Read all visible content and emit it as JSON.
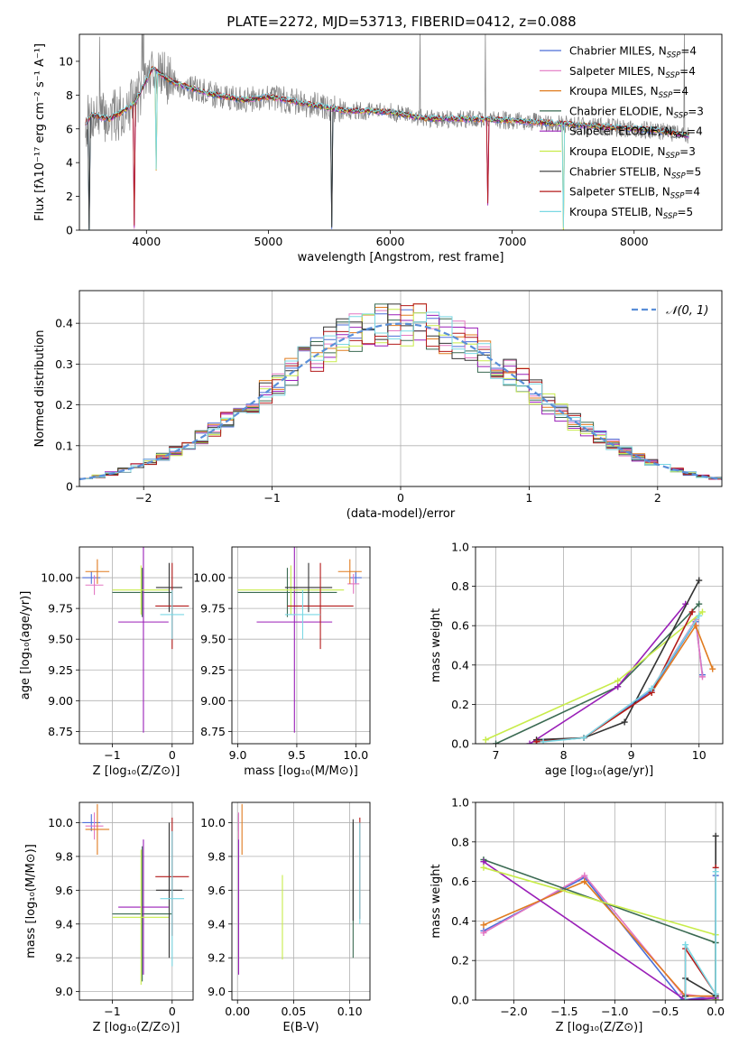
{
  "figure": {
    "title": "PLATE=2272, MJD=53713, FIBERID=0412, z=0.088"
  },
  "chart_data": [
    {
      "id": "spectrum",
      "type": "line",
      "xlabel": "wavelength [Angstrom, rest frame]",
      "ylabel": "Flux [fλ10⁻¹⁷ erg cm⁻² s⁻¹ A⁻¹]",
      "xlim": [
        3450,
        8720
      ],
      "ylim": [
        0,
        11.6
      ],
      "xticks": [
        4000,
        5000,
        6000,
        7000,
        8000
      ],
      "yticks": [
        0,
        2,
        4,
        6,
        8,
        10
      ],
      "grid": false,
      "legend": "top-right",
      "data_color": "#808080",
      "data_knots": [
        [
          3500,
          6.3
        ],
        [
          3550,
          6.8
        ],
        [
          3700,
          6.6
        ],
        [
          3800,
          7.0
        ],
        [
          3900,
          7.5
        ],
        [
          4000,
          8.9
        ],
        [
          4050,
          9.6
        ],
        [
          4200,
          8.8
        ],
        [
          4500,
          8.1
        ],
        [
          4800,
          7.7
        ],
        [
          5000,
          7.9
        ],
        [
          5300,
          7.5
        ],
        [
          5600,
          7.1
        ],
        [
          6000,
          7.0
        ],
        [
          6300,
          6.6
        ],
        [
          6600,
          6.6
        ],
        [
          7000,
          6.5
        ],
        [
          7400,
          6.3
        ],
        [
          7800,
          6.1
        ],
        [
          8200,
          5.9
        ],
        [
          8450,
          5.6
        ]
      ],
      "absorption_lines": [
        {
          "x": 3530,
          "depth": 6.6
        },
        {
          "x": 3900,
          "depth": 7.3
        },
        {
          "x": 4080,
          "depth": 5.8
        },
        {
          "x": 5520,
          "depth": 7.0
        },
        {
          "x": 6800,
          "depth": 5.0
        },
        {
          "x": 7420,
          "depth": 6.3
        }
      ],
      "series": [
        {
          "name": "Chabrier MILES, N$_{SSP}$=4",
          "label": "Chabrier MILES, N",
          "sub": "SSP",
          "n": "=4",
          "color": "#4c6ed8"
        },
        {
          "name": "Salpeter MILES, N$_{SSP}$=4",
          "label": "Salpeter MILES, N",
          "sub": "SSP",
          "n": "=4",
          "color": "#e377c2"
        },
        {
          "name": "Kroupa MILES, N$_{SSP}$=4",
          "label": "Kroupa MILES, N",
          "sub": "SSP",
          "n": "=4",
          "color": "#e07b1f"
        },
        {
          "name": "Chabrier ELODIE, N$_{SSP}$=3",
          "label": "Chabrier ELODIE, N",
          "sub": "SSP",
          "n": "=3",
          "color": "#3a6a52"
        },
        {
          "name": "Salpeter ELODIE, N$_{SSP}$=4",
          "label": "Salpeter ELODIE, N",
          "sub": "SSP",
          "n": "=4",
          "color": "#9a1fb8"
        },
        {
          "name": "Kroupa ELODIE, N$_{SSP}$=3",
          "label": "Kroupa ELODIE, N",
          "sub": "SSP",
          "n": "=3",
          "color": "#c8ec4a"
        },
        {
          "name": "Chabrier STELIB, N$_{SSP}$=5",
          "label": "Chabrier STELIB, N",
          "sub": "SSP",
          "n": "=5",
          "color": "#333333"
        },
        {
          "name": "Salpeter STELIB, N$_{SSP}$=4",
          "label": "Salpeter STELIB, N",
          "sub": "SSP",
          "n": "=4",
          "color": "#b31a1a"
        },
        {
          "name": "Kroupa STELIB, N$_{SSP}$=5",
          "label": "Kroupa STELIB, N",
          "sub": "SSP",
          "n": "=5",
          "color": "#7ad8e4"
        }
      ]
    },
    {
      "id": "residuals",
      "type": "histogram",
      "xlabel": "(data-model)/error",
      "ylabel": "Normed distribution",
      "xlim": [
        -2.5,
        2.5
      ],
      "ylim": [
        0,
        0.48
      ],
      "xticks": [
        -2,
        -1,
        0,
        1,
        2
      ],
      "yticks": [
        0.0,
        0.1,
        0.2,
        0.3,
        0.4
      ],
      "grid": true,
      "legend": "top-right",
      "reference": {
        "name": "𝒩(0, 1)",
        "color": "#5a8fd8",
        "style": "dashed"
      },
      "bin_width": 0.1,
      "bin_start": -2.5,
      "bin_count": 50
    },
    {
      "id": "age_vs_Z",
      "type": "errorbar",
      "xlabel": "Z [log₁₀(Z/Z⊙)]",
      "ylabel": "age  [log₁₀(age/yr)]",
      "xlim": [
        -1.55,
        0.35
      ],
      "ylim": [
        8.65,
        10.25
      ],
      "xticks": [
        -1,
        0
      ],
      "yticks": [
        8.75,
        9.0,
        9.25,
        9.5,
        9.75,
        10.0
      ],
      "ytick_labels": [
        "8.75",
        "9.00",
        "9.25",
        "9.50",
        "9.75",
        "10.00"
      ],
      "grid": true,
      "points": [
        {
          "series": 0,
          "x": -1.35,
          "xerr": 0.15,
          "y": 10.0,
          "yerr": 0.05
        },
        {
          "series": 1,
          "x": -1.3,
          "xerr": 0.15,
          "y": 9.94,
          "yerr": 0.08
        },
        {
          "series": 2,
          "x": -1.25,
          "xerr": 0.2,
          "y": 10.05,
          "yerr": 0.1
        },
        {
          "series": 3,
          "x": -0.5,
          "xerr": 0.5,
          "y": 9.88,
          "yerr": 0.2
        },
        {
          "series": 4,
          "x": -0.48,
          "xerr": 0.42,
          "y": 9.64,
          "yerr": 0.9
        },
        {
          "series": 5,
          "x": -0.52,
          "xerr": 0.48,
          "y": 9.9,
          "yerr": 0.2
        },
        {
          "series": 6,
          "x": -0.05,
          "xerr": 0.22,
          "y": 9.92,
          "yerr": 0.2
        },
        {
          "series": 7,
          "x": 0.0,
          "xerr": 0.28,
          "y": 9.77,
          "yerr": 0.35
        },
        {
          "series": 8,
          "x": 0.0,
          "xerr": 0.2,
          "y": 9.7,
          "yerr": 0.2
        }
      ]
    },
    {
      "id": "age_vs_mass",
      "type": "errorbar",
      "xlabel": "mass [log₁₀(M/M⊙)]",
      "ylabel": "",
      "xlim": [
        8.95,
        10.12
      ],
      "ylim": [
        8.65,
        10.25
      ],
      "xticks": [
        9.0,
        9.5,
        10.0
      ],
      "xtick_labels": [
        "9.0",
        "9.5",
        "10.0"
      ],
      "yticks": [
        8.75,
        9.0,
        9.25,
        9.5,
        9.75,
        10.0
      ],
      "ytick_labels": [
        "8.75",
        "9.00",
        "9.25",
        "9.50",
        "9.75",
        "10.00"
      ],
      "grid": true,
      "points": [
        {
          "series": 0,
          "x": 10.0,
          "xerr": 0.05,
          "y": 10.0,
          "yerr": 0.05
        },
        {
          "series": 1,
          "x": 9.98,
          "xerr": 0.05,
          "y": 9.95,
          "yerr": 0.08
        },
        {
          "series": 2,
          "x": 9.95,
          "xerr": 0.1,
          "y": 10.05,
          "yerr": 0.1
        },
        {
          "series": 3,
          "x": 9.42,
          "xerr": 0.42,
          "y": 9.88,
          "yerr": 0.2
        },
        {
          "series": 4,
          "x": 9.48,
          "xerr": 0.32,
          "y": 9.64,
          "yerr": 0.9
        },
        {
          "series": 5,
          "x": 9.45,
          "xerr": 0.45,
          "y": 9.9,
          "yerr": 0.2
        },
        {
          "series": 6,
          "x": 9.6,
          "xerr": 0.2,
          "y": 9.92,
          "yerr": 0.2
        },
        {
          "series": 7,
          "x": 9.7,
          "xerr": 0.28,
          "y": 9.77,
          "yerr": 0.35
        },
        {
          "series": 8,
          "x": 9.55,
          "xerr": 0.15,
          "y": 9.7,
          "yerr": 0.2
        }
      ]
    },
    {
      "id": "weight_vs_age",
      "type": "line",
      "xlabel": "age  [log₁₀(age/yr)]",
      "ylabel": "mass weight",
      "xlim": [
        6.7,
        10.35
      ],
      "ylim": [
        0.0,
        1.0
      ],
      "xticks": [
        7,
        8,
        9,
        10
      ],
      "yticks": [
        0.0,
        0.2,
        0.4,
        0.6,
        0.8,
        1.0
      ],
      "ytick_labels": [
        "0.0",
        "0.2",
        "0.4",
        "0.6",
        "0.8",
        "1.0"
      ],
      "grid": true,
      "series": [
        {
          "series": 0,
          "x": [
            7.6,
            8.3,
            9.3,
            9.95,
            10.05
          ],
          "y": [
            0.01,
            0.03,
            0.27,
            0.62,
            0.35
          ]
        },
        {
          "series": 1,
          "x": [
            7.6,
            8.3,
            9.3,
            9.95,
            10.05
          ],
          "y": [
            0.01,
            0.03,
            0.28,
            0.63,
            0.34
          ]
        },
        {
          "series": 2,
          "x": [
            7.6,
            8.3,
            9.3,
            9.95,
            10.2
          ],
          "y": [
            0.01,
            0.03,
            0.26,
            0.6,
            0.38
          ]
        },
        {
          "series": 3,
          "x": [
            7.0,
            8.8,
            10.0
          ],
          "y": [
            0.0,
            0.29,
            0.71
          ]
        },
        {
          "series": 4,
          "x": [
            7.5,
            8.8,
            9.8
          ],
          "y": [
            0.0,
            0.29,
            0.71
          ]
        },
        {
          "series": 5,
          "x": [
            6.85,
            8.8,
            10.05
          ],
          "y": [
            0.02,
            0.32,
            0.67
          ]
        },
        {
          "series": 6,
          "x": [
            7.6,
            8.3,
            8.9,
            10.0
          ],
          "y": [
            0.02,
            0.03,
            0.11,
            0.83
          ]
        },
        {
          "series": 7,
          "x": [
            7.6,
            8.3,
            9.3,
            9.9
          ],
          "y": [
            0.01,
            0.03,
            0.26,
            0.67
          ]
        },
        {
          "series": 8,
          "x": [
            7.7,
            8.3,
            9.3,
            10.0
          ],
          "y": [
            0.01,
            0.03,
            0.28,
            0.65
          ]
        }
      ]
    },
    {
      "id": "mass_vs_Z",
      "type": "errorbar",
      "xlabel": "Z [log₁₀(Z/Z⊙)]",
      "ylabel": "mass [log₁₀(M/M⊙)]",
      "xlim": [
        -1.55,
        0.35
      ],
      "ylim": [
        8.95,
        10.12
      ],
      "xticks": [
        -1,
        0
      ],
      "yticks": [
        9.0,
        9.2,
        9.4,
        9.6,
        9.8,
        10.0
      ],
      "ytick_labels": [
        "9.0",
        "9.2",
        "9.4",
        "9.6",
        "9.8",
        "10.0"
      ],
      "grid": true,
      "points": [
        {
          "series": 0,
          "x": -1.35,
          "xerr": 0.15,
          "y": 10.0,
          "yerr": 0.05
        },
        {
          "series": 1,
          "x": -1.3,
          "xerr": 0.15,
          "y": 9.98,
          "yerr": 0.08
        },
        {
          "series": 2,
          "x": -1.25,
          "xerr": 0.2,
          "y": 9.96,
          "yerr": 0.15
        },
        {
          "series": 3,
          "x": -0.5,
          "xerr": 0.5,
          "y": 9.46,
          "yerr": 0.4
        },
        {
          "series": 4,
          "x": -0.48,
          "xerr": 0.42,
          "y": 9.5,
          "yerr": 0.4
        },
        {
          "series": 5,
          "x": -0.52,
          "xerr": 0.48,
          "y": 9.44,
          "yerr": 0.4
        },
        {
          "series": 6,
          "x": -0.05,
          "xerr": 0.22,
          "y": 9.6,
          "yerr": 0.4
        },
        {
          "series": 7,
          "x": 0.0,
          "xerr": 0.28,
          "y": 9.68,
          "yerr": 0.35
        },
        {
          "series": 8,
          "x": 0.0,
          "xerr": 0.2,
          "y": 9.55,
          "yerr": 0.4
        }
      ]
    },
    {
      "id": "mass_vs_ebv",
      "type": "errorbar",
      "xlabel": "E(B-V)",
      "ylabel": "",
      "xlim": [
        -0.005,
        0.118
      ],
      "ylim": [
        8.95,
        10.12
      ],
      "xticks": [
        0.0,
        0.05,
        0.1
      ],
      "xtick_labels": [
        "0.00",
        "0.05",
        "0.10"
      ],
      "yticks": [
        9.0,
        9.2,
        9.4,
        9.6,
        9.8,
        10.0
      ],
      "ytick_labels": [
        "9.0",
        "9.2",
        "9.4",
        "9.6",
        "9.8",
        "10.0"
      ],
      "grid": true,
      "points": [
        {
          "series": 0,
          "x": 0.001,
          "xerr": 0,
          "y": 10.0,
          "yerr": 0.05
        },
        {
          "series": 1,
          "x": 0.001,
          "xerr": 0,
          "y": 9.98,
          "yerr": 0.08
        },
        {
          "series": 2,
          "x": 0.004,
          "xerr": 0,
          "y": 9.96,
          "yerr": 0.15
        },
        {
          "series": 3,
          "x": 0.103,
          "xerr": 0,
          "y": 9.6,
          "yerr": 0.4
        },
        {
          "series": 4,
          "x": 0.001,
          "xerr": 0,
          "y": 9.5,
          "yerr": 0.4
        },
        {
          "series": 5,
          "x": 0.04,
          "xerr": 0,
          "y": 9.44,
          "yerr": 0.25
        },
        {
          "series": 6,
          "x": 0.103,
          "xerr": 0,
          "y": 9.72,
          "yerr": 0.3
        },
        {
          "series": 7,
          "x": 0.109,
          "xerr": 0,
          "y": 9.73,
          "yerr": 0.3
        },
        {
          "series": 8,
          "x": 0.109,
          "xerr": 0,
          "y": 9.7,
          "yerr": 0.3
        }
      ]
    },
    {
      "id": "weight_vs_Z",
      "type": "line",
      "xlabel": "Z [log₁₀(Z/Z⊙)]",
      "ylabel": "mass weight",
      "xlim": [
        -2.38,
        0.07
      ],
      "ylim": [
        0.0,
        1.0
      ],
      "xticks": [
        -2.0,
        -1.5,
        -1.0,
        -0.5,
        0.0
      ],
      "xtick_labels": [
        "−2.0",
        "−1.5",
        "−1.0",
        "−0.5",
        "0.0"
      ],
      "yticks": [
        0.0,
        0.2,
        0.4,
        0.6,
        0.8,
        1.0
      ],
      "ytick_labels": [
        "0.0",
        "0.2",
        "0.4",
        "0.6",
        "0.8",
        "1.0"
      ],
      "grid": true,
      "series": [
        {
          "series": 0,
          "x": [
            -2.3,
            -1.3,
            -0.33,
            0.0,
            0.0
          ],
          "y": [
            0.35,
            0.62,
            0.0,
            0.02,
            0.63
          ]
        },
        {
          "series": 1,
          "x": [
            -2.3,
            -1.3,
            -0.33,
            0.0
          ],
          "y": [
            0.34,
            0.63,
            0.03,
            0.01
          ]
        },
        {
          "series": 2,
          "x": [
            -2.3,
            -1.3,
            -0.3,
            0.0
          ],
          "y": [
            0.38,
            0.6,
            0.02,
            0.02
          ]
        },
        {
          "series": 3,
          "x": [
            -2.3,
            0.0,
            0.0
          ],
          "y": [
            0.71,
            0.29,
            0.0
          ]
        },
        {
          "series": 4,
          "x": [
            -2.3,
            -0.3,
            0.0
          ],
          "y": [
            0.7,
            0.0,
            0.01
          ]
        },
        {
          "series": 5,
          "x": [
            -2.3,
            0.0,
            0.0
          ],
          "y": [
            0.67,
            0.33,
            0.0
          ]
        },
        {
          "series": 6,
          "x": [
            -0.3,
            -0.3,
            0.0,
            0.0
          ],
          "y": [
            0.02,
            0.11,
            0.02,
            0.83
          ]
        },
        {
          "series": 7,
          "x": [
            -0.3,
            -0.3,
            0.0,
            0.0
          ],
          "y": [
            0.0,
            0.26,
            0.03,
            0.67
          ]
        },
        {
          "series": 8,
          "x": [
            -0.3,
            -0.3,
            0.0,
            0.0
          ],
          "y": [
            0.0,
            0.28,
            0.03,
            0.65
          ]
        }
      ]
    }
  ]
}
